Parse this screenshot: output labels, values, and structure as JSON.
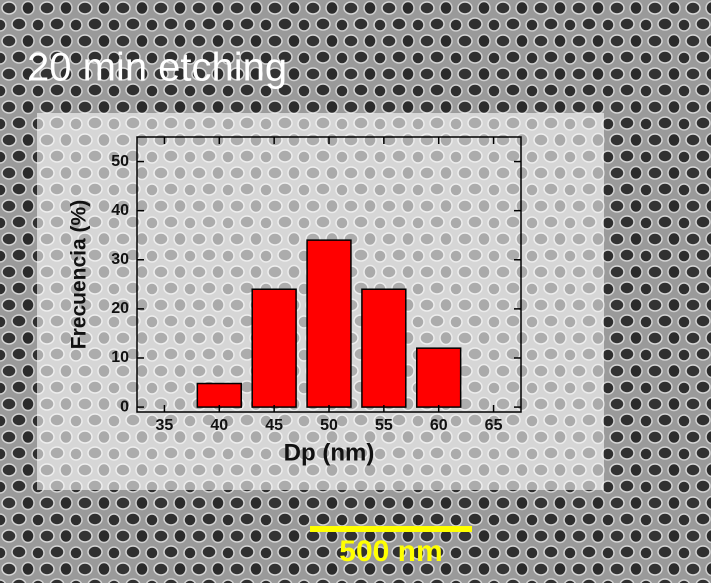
{
  "image_label": "20 min etching",
  "scale_bar": "500 nm",
  "chart_data": {
    "type": "bar",
    "xlabel": "Dp (nm)",
    "ylabel": "Frecuencia (%)",
    "x": [
      40,
      45,
      50,
      55,
      60
    ],
    "values": [
      4.8,
      24,
      34,
      24,
      12
    ],
    "color": "#ff0000",
    "xlim": [
      32.5,
      67.5
    ],
    "xticks": [
      35,
      40,
      45,
      50,
      55,
      60,
      65
    ],
    "ylim": [
      -1,
      55
    ],
    "yticks": [
      0,
      10,
      20,
      30,
      40,
      50
    ]
  }
}
